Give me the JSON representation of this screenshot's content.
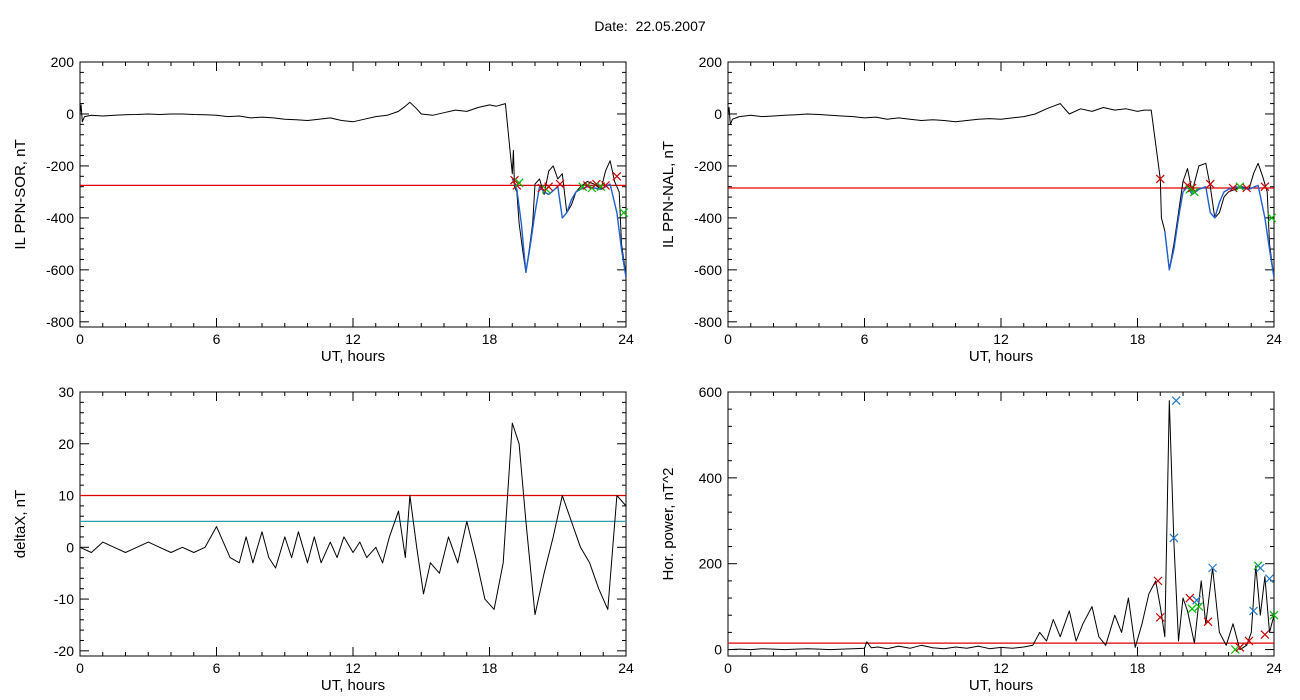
{
  "figure": {
    "title": "Date:  22.05.2007"
  },
  "colors": {
    "axis": "#000000",
    "trace": "#000000",
    "threshold_red": "#e00000",
    "threshold_cyan": "#2a9fb0",
    "overlay_blue": "#1f5fd0",
    "marker_red": "#cc0000",
    "marker_green": "#00bb00",
    "marker_blue": "#1f78c8"
  },
  "chart_data": [
    {
      "id": "panel-il-ppn-sor",
      "type": "line",
      "title": "",
      "xlabel": "UT, hours",
      "ylabel": "IL PPN-SOR, nT",
      "xlim": [
        0,
        24
      ],
      "ylim": [
        -820,
        200
      ],
      "xticks": [
        0,
        6,
        12,
        18,
        24
      ],
      "yticks": [
        200,
        0,
        -200,
        -400,
        -600,
        -800
      ],
      "series": [
        {
          "style": "trace",
          "x": [
            0,
            0.05,
            0.1,
            0.2,
            0.5,
            1,
            1.5,
            2,
            2.5,
            3,
            3.5,
            4,
            4.5,
            5,
            5.5,
            6,
            6.5,
            7,
            7.5,
            8,
            8.5,
            9,
            9.5,
            10,
            10.5,
            11,
            11.5,
            12,
            12.5,
            13,
            13.5,
            14,
            14.3,
            14.5,
            14.8,
            15,
            15.5,
            16,
            16.5,
            17,
            17.5,
            18,
            18.3,
            18.7,
            19.0,
            19.05,
            19.1,
            19.2,
            19.3,
            19.45,
            19.6,
            19.75,
            19.9,
            20.0,
            20.2,
            20.4,
            20.6,
            20.8,
            21.0,
            21.2,
            21.4,
            21.6,
            21.8,
            22.0,
            22.3,
            22.6,
            22.9,
            23.1,
            23.3,
            23.5,
            23.7,
            23.8,
            24.0
          ],
          "y": [
            0,
            35,
            -30,
            -10,
            -5,
            -8,
            -5,
            -3,
            -2,
            0,
            -2,
            0,
            0,
            -2,
            -3,
            -5,
            -10,
            -8,
            -15,
            -12,
            -15,
            -20,
            -22,
            -25,
            -20,
            -15,
            -25,
            -30,
            -20,
            -10,
            -5,
            10,
            30,
            45,
            20,
            0,
            -5,
            5,
            15,
            10,
            25,
            35,
            30,
            40,
            -230,
            -140,
            -280,
            -300,
            -420,
            -520,
            -610,
            -520,
            -420,
            -270,
            -250,
            -310,
            -220,
            -200,
            -250,
            -230,
            -380,
            -350,
            -300,
            -280,
            -260,
            -270,
            -290,
            -220,
            -180,
            -260,
            -300,
            -500,
            -620
          ]
        },
        {
          "style": "overlay",
          "x": [
            19.0,
            19.2,
            19.4,
            19.6,
            19.8,
            20.0,
            20.2,
            20.4,
            20.6,
            21.0,
            21.2,
            21.4,
            21.6,
            21.8,
            22.0,
            22.3,
            22.6,
            22.9,
            23.3,
            23.6,
            23.8,
            24.0
          ],
          "y": [
            -250,
            -290,
            -420,
            -610,
            -500,
            -380,
            -280,
            -300,
            -310,
            -280,
            -400,
            -380,
            -330,
            -300,
            -290,
            -280,
            -285,
            -290,
            -270,
            -380,
            -520,
            -630
          ]
        }
      ],
      "thresholds": [
        {
          "y": -275,
          "color": "red"
        }
      ],
      "markers": [
        {
          "x": 19.1,
          "y": -255,
          "color": "red"
        },
        {
          "x": 19.2,
          "y": -275,
          "color": "red"
        },
        {
          "x": 19.3,
          "y": -265,
          "color": "green"
        },
        {
          "x": 20.3,
          "y": -285,
          "color": "red"
        },
        {
          "x": 20.5,
          "y": -290,
          "color": "green"
        },
        {
          "x": 20.6,
          "y": -280,
          "color": "red"
        },
        {
          "x": 21.1,
          "y": -270,
          "color": "red"
        },
        {
          "x": 22.1,
          "y": -280,
          "color": "green"
        },
        {
          "x": 22.3,
          "y": -275,
          "color": "red"
        },
        {
          "x": 22.5,
          "y": -285,
          "color": "green"
        },
        {
          "x": 22.7,
          "y": -270,
          "color": "red"
        },
        {
          "x": 22.9,
          "y": -280,
          "color": "green"
        },
        {
          "x": 23.1,
          "y": -275,
          "color": "red"
        },
        {
          "x": 23.6,
          "y": -240,
          "color": "red"
        },
        {
          "x": 23.9,
          "y": -380,
          "color": "green"
        }
      ]
    },
    {
      "id": "panel-il-ppn-nal",
      "type": "line",
      "title": "",
      "xlabel": "UT, hours",
      "ylabel": "IL PPN-NAL, nT",
      "xlim": [
        0,
        24
      ],
      "ylim": [
        -820,
        200
      ],
      "xticks": [
        0,
        6,
        12,
        18,
        24
      ],
      "yticks": [
        200,
        0,
        -200,
        -400,
        -600,
        -800
      ],
      "series": [
        {
          "style": "trace",
          "x": [
            0,
            0.05,
            0.1,
            0.2,
            0.5,
            1,
            1.5,
            2,
            2.5,
            3,
            3.5,
            4,
            4.5,
            5,
            5.5,
            6,
            6.5,
            7,
            7.5,
            8,
            8.5,
            9,
            9.5,
            10,
            10.5,
            11,
            11.5,
            12,
            12.5,
            13,
            13.5,
            14,
            14.3,
            14.6,
            15,
            15.5,
            16,
            16.5,
            17,
            17.5,
            18,
            18.3,
            18.6,
            19.0,
            19.05,
            19.2,
            19.4,
            19.6,
            19.8,
            20.0,
            20.2,
            20.4,
            20.7,
            21.0,
            21.2,
            21.4,
            21.6,
            21.8,
            22.0,
            22.3,
            22.6,
            22.9,
            23.1,
            23.3,
            23.5,
            23.7,
            23.8,
            24.0
          ],
          "y": [
            0,
            25,
            -40,
            -20,
            -10,
            -5,
            -10,
            -8,
            -5,
            -3,
            0,
            -2,
            -5,
            -8,
            -10,
            -15,
            -12,
            -20,
            -15,
            -20,
            -25,
            -22,
            -25,
            -30,
            -25,
            -20,
            -18,
            -20,
            -15,
            -10,
            0,
            20,
            30,
            40,
            0,
            20,
            10,
            25,
            15,
            20,
            10,
            15,
            15,
            -250,
            -400,
            -450,
            -600,
            -500,
            -380,
            -260,
            -210,
            -300,
            -200,
            -190,
            -280,
            -400,
            -380,
            -320,
            -300,
            -290,
            -280,
            -290,
            -230,
            -190,
            -240,
            -300,
            -500,
            -630
          ]
        },
        {
          "style": "overlay",
          "x": [
            19.2,
            19.4,
            19.6,
            19.8,
            20.0,
            20.2,
            20.4,
            20.7,
            21.0,
            21.2,
            21.4,
            21.6,
            21.8,
            22.0,
            22.3,
            22.6,
            22.9,
            23.3,
            23.6,
            23.8,
            24.0
          ],
          "y": [
            -450,
            -600,
            -520,
            -400,
            -300,
            -280,
            -310,
            -290,
            -280,
            -380,
            -400,
            -340,
            -300,
            -290,
            -280,
            -285,
            -290,
            -275,
            -400,
            -520,
            -630
          ]
        }
      ],
      "thresholds": [
        {
          "y": -285,
          "color": "red"
        }
      ],
      "markers": [
        {
          "x": 19.0,
          "y": -250,
          "color": "red"
        },
        {
          "x": 20.2,
          "y": -275,
          "color": "red"
        },
        {
          "x": 20.3,
          "y": -290,
          "color": "green"
        },
        {
          "x": 20.4,
          "y": -285,
          "color": "red"
        },
        {
          "x": 20.5,
          "y": -300,
          "color": "green"
        },
        {
          "x": 21.2,
          "y": -270,
          "color": "red"
        },
        {
          "x": 22.2,
          "y": -285,
          "color": "red"
        },
        {
          "x": 22.5,
          "y": -280,
          "color": "green"
        },
        {
          "x": 22.8,
          "y": -285,
          "color": "red"
        },
        {
          "x": 23.6,
          "y": -280,
          "color": "red"
        },
        {
          "x": 23.9,
          "y": -400,
          "color": "green"
        }
      ]
    },
    {
      "id": "panel-deltax",
      "type": "line",
      "title": "",
      "xlabel": "UT, hours",
      "ylabel": "deltaX, nT",
      "xlim": [
        0,
        24
      ],
      "ylim": [
        -21,
        30
      ],
      "xticks": [
        0,
        6,
        12,
        18,
        24
      ],
      "yticks": [
        30,
        20,
        10,
        0,
        -10,
        -20
      ],
      "series": [
        {
          "style": "trace",
          "x": [
            0,
            0.5,
            1,
            1.5,
            2,
            2.5,
            3,
            3.5,
            4,
            4.5,
            5,
            5.5,
            6,
            6.3,
            6.6,
            7,
            7.3,
            7.6,
            8,
            8.3,
            8.6,
            9,
            9.3,
            9.6,
            10,
            10.3,
            10.6,
            11,
            11.3,
            11.6,
            12,
            12.3,
            12.6,
            13,
            13.3,
            13.6,
            14,
            14.3,
            14.5,
            14.8,
            15.1,
            15.4,
            15.8,
            16.2,
            16.6,
            17,
            17.4,
            17.8,
            18.2,
            18.6,
            19.0,
            19.3,
            19.6,
            20.0,
            20.4,
            20.8,
            21.2,
            21.6,
            22.0,
            22.4,
            22.8,
            23.2,
            23.6,
            24.0
          ],
          "y": [
            0,
            -1,
            1,
            0,
            -1,
            0,
            1,
            0,
            -1,
            0,
            -1,
            0,
            4,
            1,
            -2,
            -3,
            2,
            -3,
            3,
            -2,
            -4,
            2,
            -2,
            3,
            -3,
            2,
            -3,
            1,
            -2,
            2,
            -1,
            1,
            -2,
            0,
            -3,
            2,
            7,
            -2,
            10,
            0,
            -9,
            -3,
            -5,
            2,
            -3,
            5,
            -2,
            -10,
            -12,
            -3,
            24,
            20,
            5,
            -13,
            -5,
            2,
            10,
            5,
            0,
            -3,
            -8,
            -12,
            10,
            8
          ]
        }
      ],
      "thresholds": [
        {
          "y": 10,
          "color": "red"
        },
        {
          "y": 5,
          "color": "cyan"
        }
      ],
      "markers": []
    },
    {
      "id": "panel-hor-power",
      "type": "line",
      "title": "",
      "xlabel": "UT, hours",
      "ylabel": "Hor. power, nT^2",
      "xlim": [
        0,
        24
      ],
      "ylim": [
        -15,
        600
      ],
      "xticks": [
        0,
        6,
        12,
        18,
        24
      ],
      "yticks": [
        600,
        400,
        200,
        0
      ],
      "series": [
        {
          "style": "trace",
          "x": [
            0,
            0.5,
            1,
            1.5,
            2,
            2.5,
            3,
            3.5,
            4,
            4.5,
            5,
            5.5,
            6,
            6.1,
            6.3,
            6.6,
            7,
            7.5,
            8,
            8.5,
            9,
            9.5,
            10,
            10.5,
            11,
            11.5,
            12,
            12.5,
            13,
            13.4,
            13.7,
            14,
            14.3,
            14.6,
            15,
            15.3,
            15.6,
            16,
            16.3,
            16.6,
            17,
            17.3,
            17.6,
            17.9,
            18.2,
            18.5,
            18.8,
            19.0,
            19.2,
            19.4,
            19.6,
            19.8,
            20.0,
            20.2,
            20.5,
            20.8,
            21.0,
            21.3,
            21.6,
            21.9,
            22.2,
            22.5,
            22.8,
            23.0,
            23.2,
            23.4,
            23.6,
            23.8,
            24.0
          ],
          "y": [
            0,
            1,
            0,
            2,
            1,
            0,
            1,
            2,
            1,
            0,
            1,
            2,
            3,
            18,
            4,
            6,
            2,
            8,
            3,
            10,
            4,
            2,
            6,
            3,
            8,
            2,
            5,
            3,
            6,
            10,
            40,
            20,
            70,
            30,
            90,
            20,
            60,
            100,
            30,
            10,
            80,
            40,
            120,
            5,
            60,
            130,
            160,
            100,
            30,
            580,
            250,
            20,
            120,
            90,
            15,
            160,
            60,
            190,
            40,
            10,
            60,
            0,
            10,
            40,
            195,
            80,
            170,
            40,
            80
          ]
        }
      ],
      "thresholds": [
        {
          "y": 15,
          "color": "red"
        }
      ],
      "markers": [
        {
          "x": 18.9,
          "y": 160,
          "color": "red"
        },
        {
          "x": 19.0,
          "y": 75,
          "color": "red"
        },
        {
          "x": 19.6,
          "y": 260,
          "color": "blue"
        },
        {
          "x": 19.7,
          "y": 580,
          "color": "blue"
        },
        {
          "x": 20.3,
          "y": 120,
          "color": "red"
        },
        {
          "x": 20.4,
          "y": 95,
          "color": "green"
        },
        {
          "x": 20.6,
          "y": 115,
          "color": "blue"
        },
        {
          "x": 20.7,
          "y": 100,
          "color": "green"
        },
        {
          "x": 21.1,
          "y": 65,
          "color": "red"
        },
        {
          "x": 21.3,
          "y": 190,
          "color": "blue"
        },
        {
          "x": 22.3,
          "y": 0,
          "color": "green"
        },
        {
          "x": 22.5,
          "y": 5,
          "color": "red"
        },
        {
          "x": 22.9,
          "y": 20,
          "color": "red"
        },
        {
          "x": 23.1,
          "y": 90,
          "color": "blue"
        },
        {
          "x": 23.3,
          "y": 195,
          "color": "green"
        },
        {
          "x": 23.4,
          "y": 190,
          "color": "blue"
        },
        {
          "x": 23.6,
          "y": 35,
          "color": "red"
        },
        {
          "x": 23.8,
          "y": 165,
          "color": "blue"
        },
        {
          "x": 24.0,
          "y": 80,
          "color": "green"
        }
      ]
    }
  ]
}
